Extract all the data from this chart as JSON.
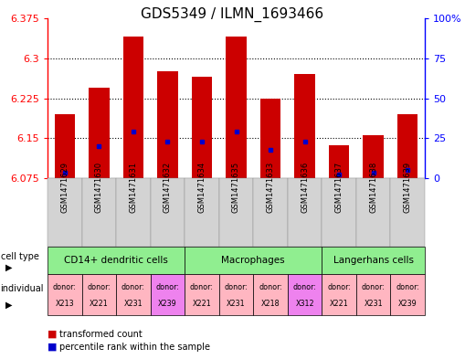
{
  "title": "GDS5349 / ILMN_1693466",
  "samples": [
    "GSM1471629",
    "GSM1471630",
    "GSM1471631",
    "GSM1471632",
    "GSM1471634",
    "GSM1471635",
    "GSM1471633",
    "GSM1471636",
    "GSM1471637",
    "GSM1471638",
    "GSM1471639"
  ],
  "red_values": [
    6.195,
    6.245,
    6.34,
    6.275,
    6.265,
    6.34,
    6.225,
    6.27,
    6.137,
    6.155,
    6.195
  ],
  "blue_values": [
    6.085,
    6.135,
    6.163,
    6.143,
    6.143,
    6.163,
    6.128,
    6.143,
    6.082,
    6.085,
    6.09
  ],
  "y_min": 6.075,
  "y_max": 6.375,
  "y_ticks": [
    6.075,
    6.15,
    6.225,
    6.3,
    6.375
  ],
  "y_right_ticks": [
    0,
    25,
    50,
    75,
    100
  ],
  "y_right_labels": [
    "0",
    "25",
    "50",
    "75",
    "100%"
  ],
  "cell_groups": [
    {
      "label": "CD14+ dendritic cells",
      "start": 0,
      "end": 3,
      "color": "#90EE90"
    },
    {
      "label": "Macrophages",
      "start": 4,
      "end": 7,
      "color": "#90EE90"
    },
    {
      "label": "Langerhans cells",
      "start": 8,
      "end": 10,
      "color": "#90EE90"
    }
  ],
  "individual_labels": [
    {
      "donor": "X213",
      "color": "#FFB6C1"
    },
    {
      "donor": "X221",
      "color": "#FFB6C1"
    },
    {
      "donor": "X231",
      "color": "#FFB6C1"
    },
    {
      "donor": "X239",
      "color": "#EE82EE"
    },
    {
      "donor": "X221",
      "color": "#FFB6C1"
    },
    {
      "donor": "X231",
      "color": "#FFB6C1"
    },
    {
      "donor": "X218",
      "color": "#FFB6C1"
    },
    {
      "donor": "X312",
      "color": "#EE82EE"
    },
    {
      "donor": "X221",
      "color": "#FFB6C1"
    },
    {
      "donor": "X231",
      "color": "#FFB6C1"
    },
    {
      "donor": "X239",
      "color": "#FFB6C1"
    }
  ],
  "bar_color": "#CC0000",
  "blue_color": "#0000CC",
  "background_color": "#ffffff",
  "bar_width": 0.6,
  "grid_lines": [
    6.15,
    6.225,
    6.3
  ],
  "title_fontsize": 11,
  "axis_fontsize": 8,
  "sample_fontsize": 6,
  "cell_type_fontsize": 7.5,
  "indiv_fontsize": 5.8,
  "legend_fontsize": 7
}
